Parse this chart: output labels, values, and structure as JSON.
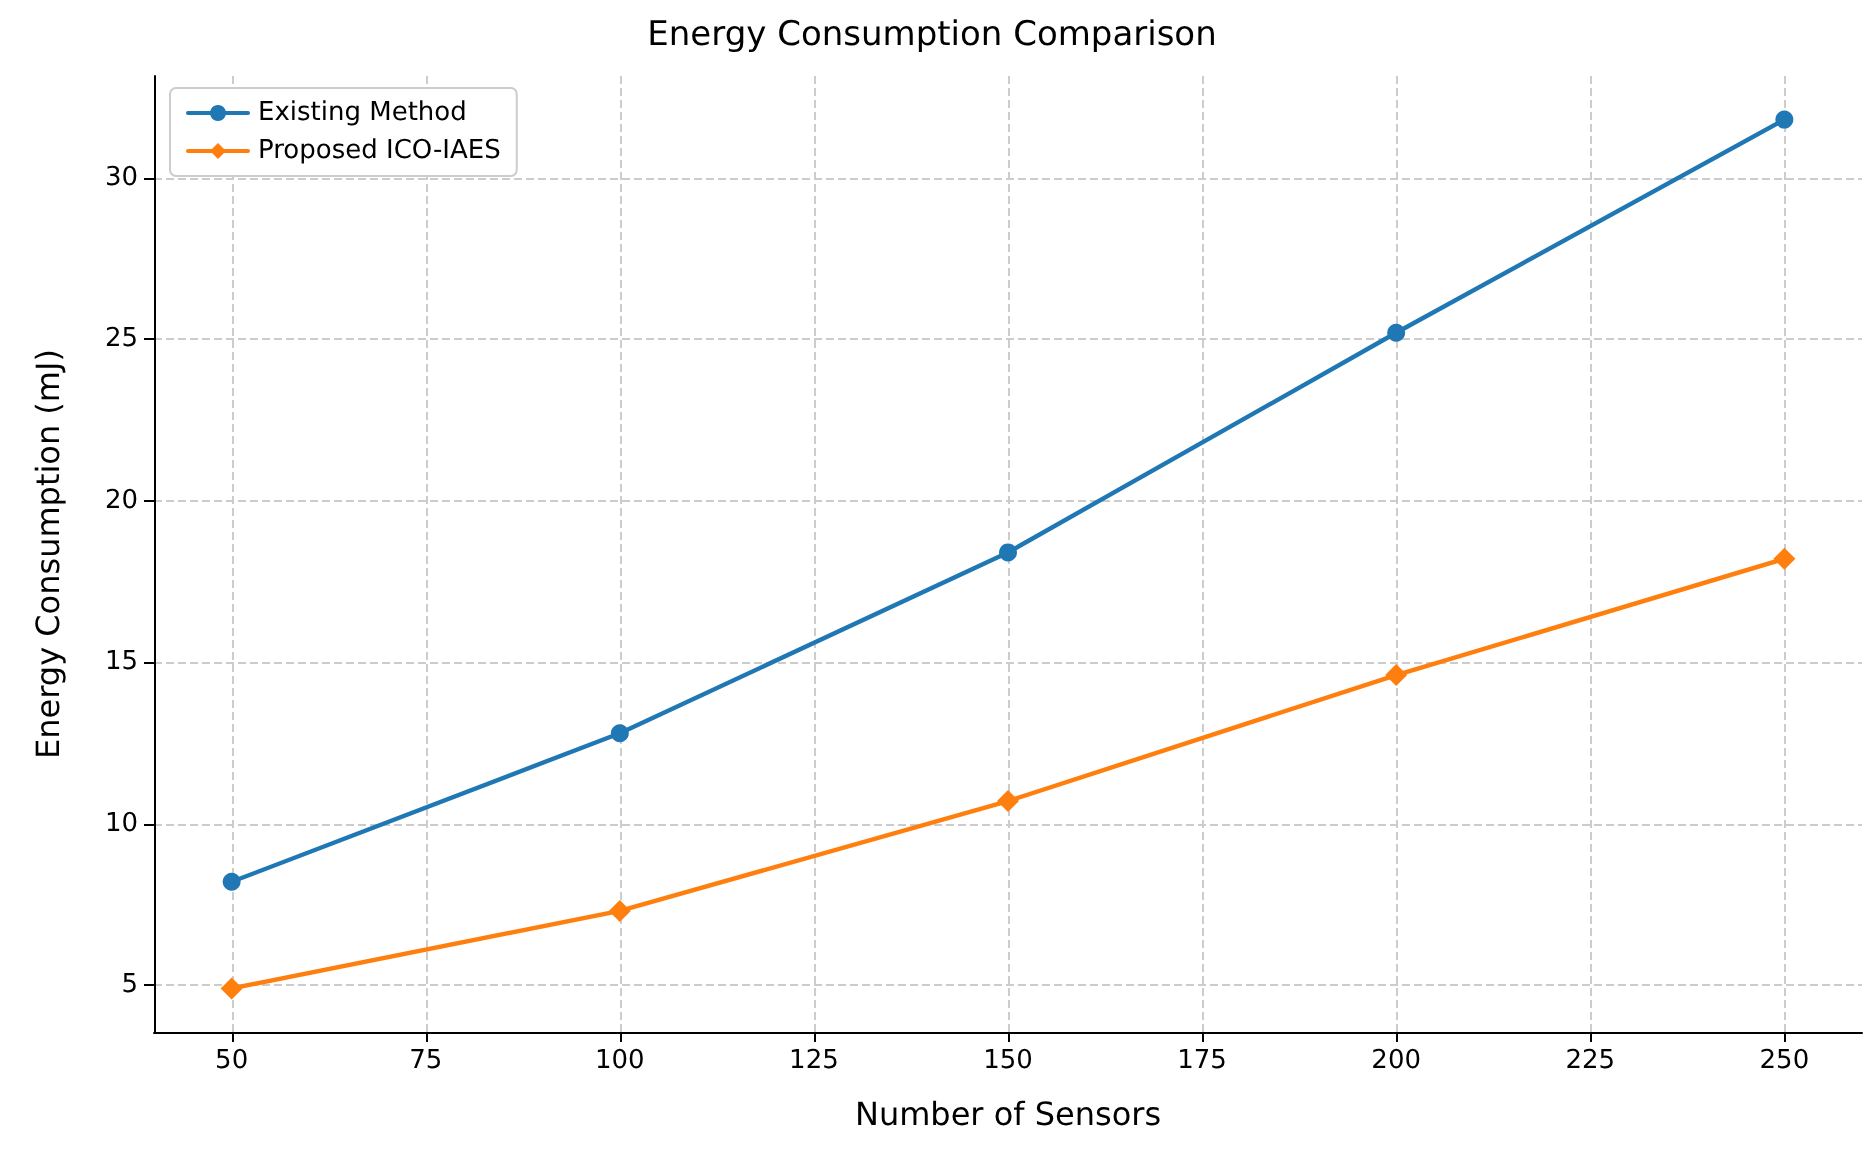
{
  "chart_data": {
    "type": "line",
    "title": "Energy Consumption Comparison",
    "xlabel": "Number of Sensors",
    "ylabel": "Energy Consumption (mJ)",
    "x": [
      50,
      100,
      150,
      200,
      250
    ],
    "series": [
      {
        "name": "Existing Method",
        "color": "#1f77b4",
        "marker": "circle",
        "values": [
          8.2,
          12.8,
          18.4,
          25.2,
          31.8
        ]
      },
      {
        "name": "Proposed ICO-IAES",
        "color": "#ff7f0e",
        "marker": "diamond",
        "values": [
          4.9,
          7.3,
          10.7,
          14.6,
          18.2
        ]
      }
    ],
    "xlim": [
      40,
      260
    ],
    "xticks": [
      50,
      75,
      100,
      125,
      150,
      175,
      200,
      225,
      250
    ],
    "ylim": [
      3.55,
      33.15
    ],
    "yticks": [
      5,
      10,
      15,
      20,
      25,
      30
    ],
    "grid": true,
    "legend": "top left",
    "line_style": "solid"
  }
}
